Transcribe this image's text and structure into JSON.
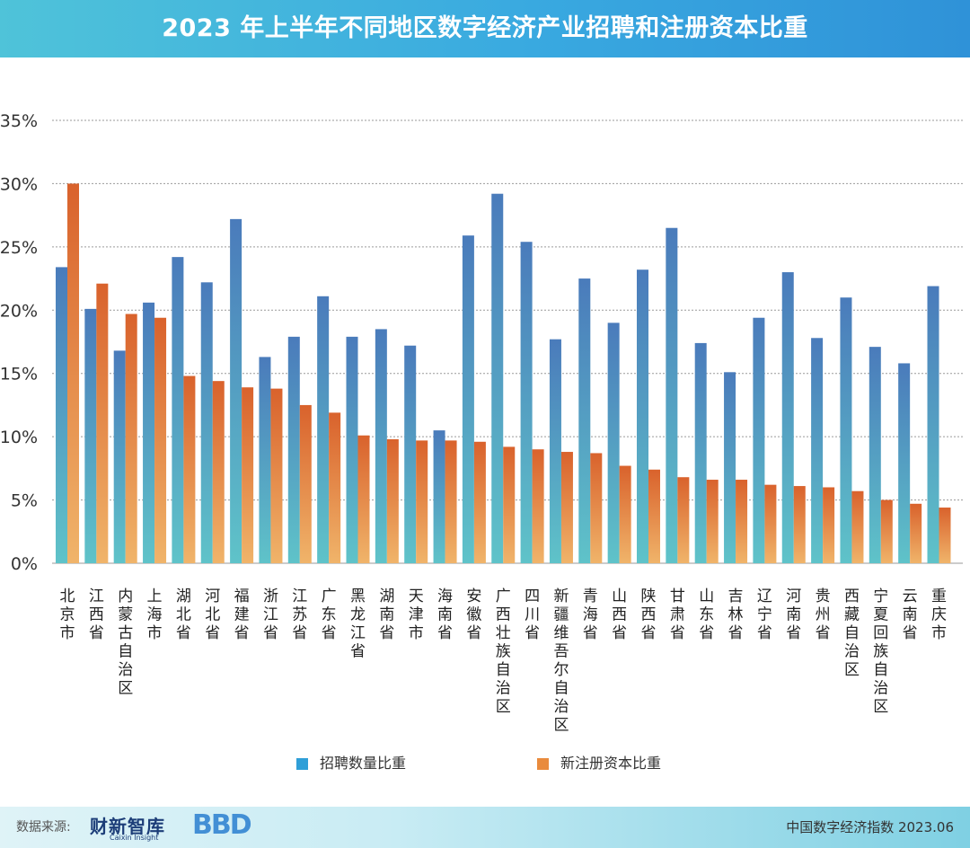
{
  "title": "2023 年上半年不同地区数字经济产业招聘和注册资本比重",
  "footer": {
    "source_label": "数据来源:",
    "logo_cn": "财新智库",
    "logo_en": "Caixin Insight",
    "logo_bbd": "BBD",
    "index_label": "中国数字经济指数 2023.06"
  },
  "colors": {
    "recruit_top": "#4a7bbb",
    "recruit_bottom": "#5fc3c9",
    "capital_top": "#d9622c",
    "capital_bottom": "#f0b46a",
    "legend_recruit": "#2f9fd8",
    "legend_capital": "#e98b3d"
  },
  "chart_data": {
    "type": "bar",
    "title": "2023 年上半年不同地区数字经济产业招聘和注册资本比重",
    "xlabel": "",
    "ylabel": "",
    "ylim": [
      0,
      35
    ],
    "yticks": [
      0,
      5,
      10,
      15,
      20,
      25,
      30,
      35
    ],
    "ytick_labels": [
      "0%",
      "5%",
      "10%",
      "15%",
      "20%",
      "25%",
      "30%",
      "35%"
    ],
    "grid": true,
    "legend_position": "bottom",
    "categories": [
      "北京市",
      "江西省",
      "内蒙古自治区",
      "上海市",
      "湖北省",
      "河北省",
      "福建省",
      "浙江省",
      "江苏省",
      "广东省",
      "黑龙江省",
      "湖南省",
      "天津市",
      "海南省",
      "安徽省",
      "广西壮族自治区",
      "四川省",
      "新疆维吾尔自治区",
      "青海省",
      "山西省",
      "陕西省",
      "甘肃省",
      "山东省",
      "吉林省",
      "辽宁省",
      "河南省",
      "贵州省",
      "西藏自治区",
      "宁夏回族自治区",
      "云南省",
      "重庆市"
    ],
    "series": [
      {
        "name": "招聘数量比重",
        "values": [
          23.4,
          20.1,
          16.8,
          20.6,
          24.2,
          22.2,
          27.2,
          16.3,
          17.9,
          21.1,
          17.9,
          18.5,
          17.2,
          10.5,
          25.9,
          29.2,
          25.4,
          17.7,
          22.5,
          19.0,
          23.2,
          26.5,
          17.4,
          15.1,
          19.4,
          23.0,
          17.8,
          21.0,
          17.1,
          15.8,
          21.9
        ]
      },
      {
        "name": "新注册资本比重",
        "values": [
          30.0,
          22.1,
          19.7,
          19.4,
          14.8,
          14.4,
          13.9,
          13.8,
          12.5,
          11.9,
          10.1,
          9.8,
          9.7,
          9.7,
          9.6,
          9.2,
          9.0,
          8.8,
          8.7,
          7.7,
          7.4,
          6.8,
          6.6,
          6.6,
          6.2,
          6.1,
          6.0,
          5.7,
          5.0,
          4.7,
          4.4
        ]
      }
    ]
  }
}
